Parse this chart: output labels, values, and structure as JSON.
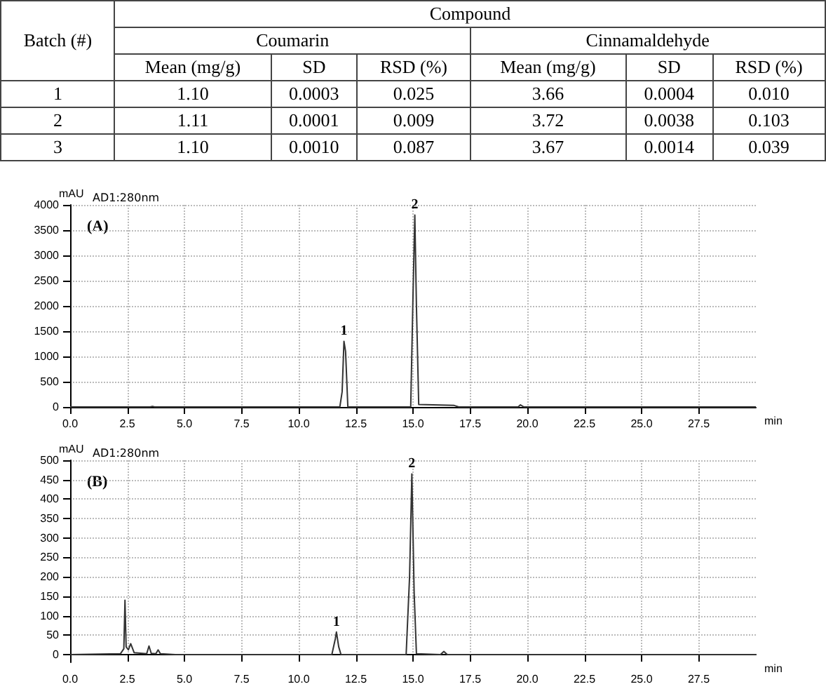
{
  "chart_data": [
    {
      "type": "other",
      "annotations": [
        "Batch (#)",
        "Compound",
        "Coumarin",
        "Cinnamaldehyde",
        "Mean (mg/g)",
        "SD",
        "RSD (%)",
        "Mean (mg/g)",
        "SD",
        "RSD (%)",
        "1",
        "1.10",
        "0.0003",
        "0.025",
        "3.66",
        "0.0004",
        "0.010",
        "2",
        "1.11",
        "0.0001",
        "0.009",
        "3.72",
        "0.0038",
        "0.103",
        "3",
        "1.10",
        "0.0010",
        "0.087",
        "3.67",
        "0.0014",
        "0.039"
      ]
    },
    {
      "type": "line",
      "title": "(A)",
      "xlabel": "min",
      "ylabel": "mAU",
      "color": "#333333",
      "marker": "none",
      "grid": true,
      "line_style": "solid",
      "x": [
        0,
        3.5,
        3.6,
        3.7,
        11.8,
        11.9,
        11.98,
        12.05,
        12.15,
        14.9,
        15.0,
        15.08,
        15.15,
        15.25,
        16.8,
        17.0,
        19.6,
        19.7,
        19.85,
        30
      ],
      "values": [
        0,
        0,
        10,
        0,
        0,
        300,
        1300,
        1100,
        0,
        0,
        2200,
        3800,
        2000,
        50,
        30,
        0,
        0,
        40,
        0,
        0
      ],
      "xlim": [
        0,
        30
      ],
      "ylim": [
        0,
        4000
      ],
      "xticks": [
        {
          "value": 0,
          "label": "0.0"
        },
        {
          "value": 2.5,
          "label": "2.5"
        },
        {
          "value": 5,
          "label": "5.0"
        },
        {
          "value": 7.5,
          "label": "7.5"
        },
        {
          "value": 10,
          "label": "10.0"
        },
        {
          "value": 12.5,
          "label": "12.5"
        },
        {
          "value": 15,
          "label": "15.0"
        },
        {
          "value": 17.5,
          "label": "17.5"
        },
        {
          "value": 20,
          "label": "20.0"
        },
        {
          "value": 22.5,
          "label": "22.5"
        },
        {
          "value": 25,
          "label": "25.0"
        },
        {
          "value": 27.5,
          "label": "27.5"
        }
      ],
      "yticks": [
        0,
        500,
        1000,
        1500,
        2000,
        2500,
        3000,
        3500,
        4000
      ],
      "annotations": [
        "AD1:280nm",
        {
          "text": "1",
          "x": 11.98,
          "y": 1300
        },
        {
          "text": "2",
          "x": 15.08,
          "y": 3800
        }
      ]
    },
    {
      "type": "line",
      "title": "(B)",
      "xlabel": "min",
      "ylabel": "mAU",
      "color": "#333333",
      "marker": "none",
      "grid": true,
      "line_style": "solid",
      "x": [
        0,
        2.2,
        2.35,
        2.4,
        2.45,
        2.55,
        2.65,
        2.8,
        3.35,
        3.45,
        3.55,
        3.75,
        3.85,
        3.95,
        4.6,
        11.45,
        11.6,
        11.65,
        11.75,
        11.85,
        14.7,
        14.85,
        14.95,
        15.05,
        15.15,
        16.2,
        16.35,
        16.5,
        30
      ],
      "values": [
        0,
        2,
        15,
        140,
        20,
        12,
        28,
        5,
        2,
        22,
        3,
        2,
        12,
        2,
        0,
        0,
        40,
        58,
        20,
        0,
        0,
        200,
        465,
        160,
        2,
        0,
        8,
        0,
        0
      ],
      "xlim": [
        0,
        30
      ],
      "ylim": [
        -20,
        500
      ],
      "xticks": [
        {
          "value": 0,
          "label": "0.0"
        },
        {
          "value": 2.5,
          "label": "2.5"
        },
        {
          "value": 5,
          "label": "5.0"
        },
        {
          "value": 7.5,
          "label": "7.5"
        },
        {
          "value": 10,
          "label": "10.0"
        },
        {
          "value": 12.5,
          "label": "12.5"
        },
        {
          "value": 15,
          "label": "15.0"
        },
        {
          "value": 17.5,
          "label": "17.5"
        },
        {
          "value": 20,
          "label": "20.0"
        },
        {
          "value": 22.5,
          "label": "22.5"
        },
        {
          "value": 25,
          "label": "25.0"
        },
        {
          "value": 27.5,
          "label": "27.5"
        }
      ],
      "yticks": [
        0,
        50,
        100,
        150,
        200,
        250,
        300,
        350,
        400,
        450,
        500
      ],
      "annotations": [
        "AD1:280nm",
        {
          "text": "1",
          "x": 11.65,
          "y": 58
        },
        {
          "text": "2",
          "x": 14.95,
          "y": 465
        }
      ]
    }
  ]
}
